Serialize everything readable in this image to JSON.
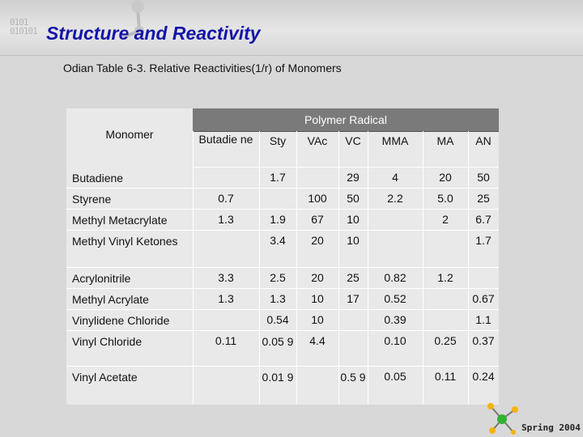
{
  "slide": {
    "title": "Structure and Reactivity",
    "subtitle": "Odian Table 6-3. Relative Reactivities(1/r) of Monomers",
    "footer": "Spring 2004",
    "title_deco": "0101\n010101"
  },
  "table": {
    "group_header": "Polymer Radical",
    "row_header": "Monomer",
    "columns": [
      "Butadie ne",
      "Sty",
      "VAc",
      "VC",
      "MMA",
      "MA",
      "AN"
    ],
    "rows": [
      {
        "label": "Butadiene",
        "values": [
          "",
          "1.7",
          "",
          "29",
          "4",
          "20",
          "50"
        ]
      },
      {
        "label": "Styrene",
        "values": [
          "0.7",
          "",
          "100",
          "50",
          "2.2",
          "5.0",
          "25"
        ]
      },
      {
        "label": "Methyl Metacrylate",
        "values": [
          "1.3",
          "1.9",
          "67",
          "10",
          "",
          "2",
          "6.7"
        ]
      },
      {
        "label": "Methyl Vinyl Ketones",
        "values": [
          "",
          "3.4",
          "20",
          "10",
          "",
          "",
          "1.7"
        ]
      },
      {
        "label": "Acrylonitrile",
        "values": [
          "3.3",
          "2.5",
          "20",
          "25",
          "0.82",
          "1.2",
          ""
        ]
      },
      {
        "label": "Methyl Acrylate",
        "values": [
          "1.3",
          "1.3",
          "10",
          "17",
          "0.52",
          "",
          "0.67"
        ]
      },
      {
        "label": "Vinylidene Chloride",
        "values": [
          "",
          "0.54",
          "10",
          "",
          "0.39",
          "",
          "1.1"
        ]
      },
      {
        "label": "Vinyl Chloride",
        "values": [
          "0.11",
          "0.05 9",
          "4.4",
          "",
          "0.10",
          "0.25",
          "0.37"
        ]
      },
      {
        "label": "Vinyl Acetate",
        "values": [
          "",
          "0.01 9",
          "",
          "0.5 9",
          "0.05",
          "0.11",
          "0.24"
        ]
      }
    ]
  }
}
